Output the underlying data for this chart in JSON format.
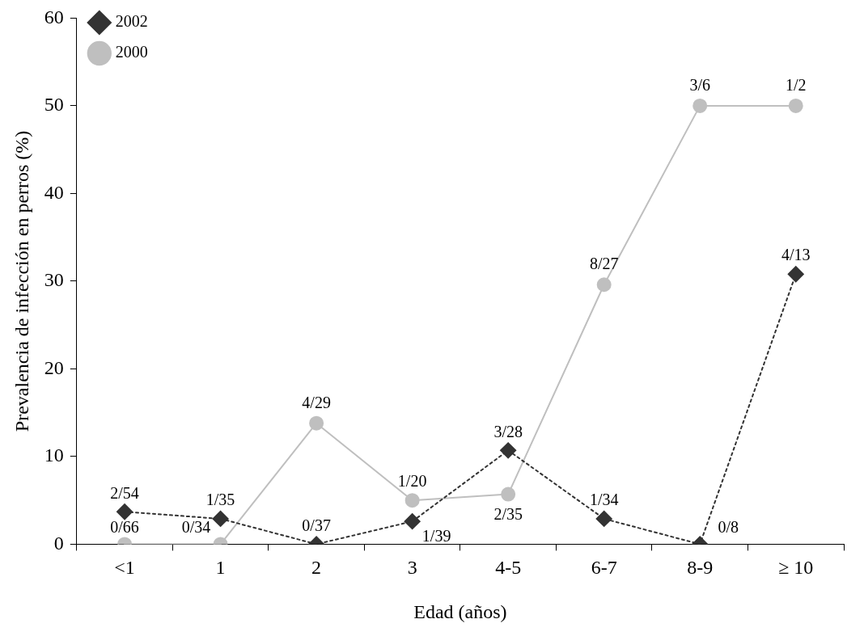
{
  "chart_data": {
    "type": "line",
    "xlabel": "Edad (años)",
    "ylabel": "Prevalencia de infección en perros (%)",
    "categories": [
      "<1",
      "1",
      "2",
      "3",
      "4-5",
      "6-7",
      "8-9",
      "≥ 10"
    ],
    "ylim": [
      0,
      60
    ],
    "yticks": [
      0,
      10,
      20,
      30,
      40,
      50,
      60
    ],
    "grid": false,
    "legend": "top left",
    "series": [
      {
        "name": "2002",
        "color": "#333333",
        "marker": "diamond",
        "line_style": "dotted",
        "values": [
          3.7,
          2.9,
          0,
          2.6,
          10.7,
          2.9,
          0,
          30.8
        ]
      },
      {
        "name": "2000",
        "color": "#bfbfbf",
        "marker": "circle",
        "line_style": "solid",
        "values": [
          0,
          0,
          13.8,
          5,
          5.7,
          29.6,
          50,
          50
        ]
      }
    ],
    "annotations": [
      {
        "text": "2/54",
        "x": "<1",
        "y": 3.7
      },
      {
        "text": "1/35",
        "x": "1",
        "y": 2.9
      },
      {
        "text": "0/37",
        "x": "2",
        "y": 0
      },
      {
        "text": "1/39",
        "x": "3",
        "y": 2.6
      },
      {
        "text": "3/28",
        "x": "4-5",
        "y": 10.7
      },
      {
        "text": "1/34",
        "x": "6-7",
        "y": 2.9
      },
      {
        "text": "0/8",
        "x": "8-9",
        "y": 0
      },
      {
        "text": "4/13",
        "x": "≥ 10",
        "y": 30.8
      },
      {
        "text": "0/66",
        "x": "<1",
        "y": 0
      },
      {
        "text": "0/34",
        "x": "1",
        "y": 0
      },
      {
        "text": "4/29",
        "x": "2",
        "y": 13.8
      },
      {
        "text": "1/20",
        "x": "3",
        "y": 5
      },
      {
        "text": "2/35",
        "x": "4-5",
        "y": 5.7
      },
      {
        "text": "8/27",
        "x": "6-7",
        "y": 29.6
      },
      {
        "text": "3/6",
        "x": "8-9",
        "y": 50
      },
      {
        "text": "1/2",
        "x": "≥ 10",
        "y": 50
      }
    ]
  }
}
